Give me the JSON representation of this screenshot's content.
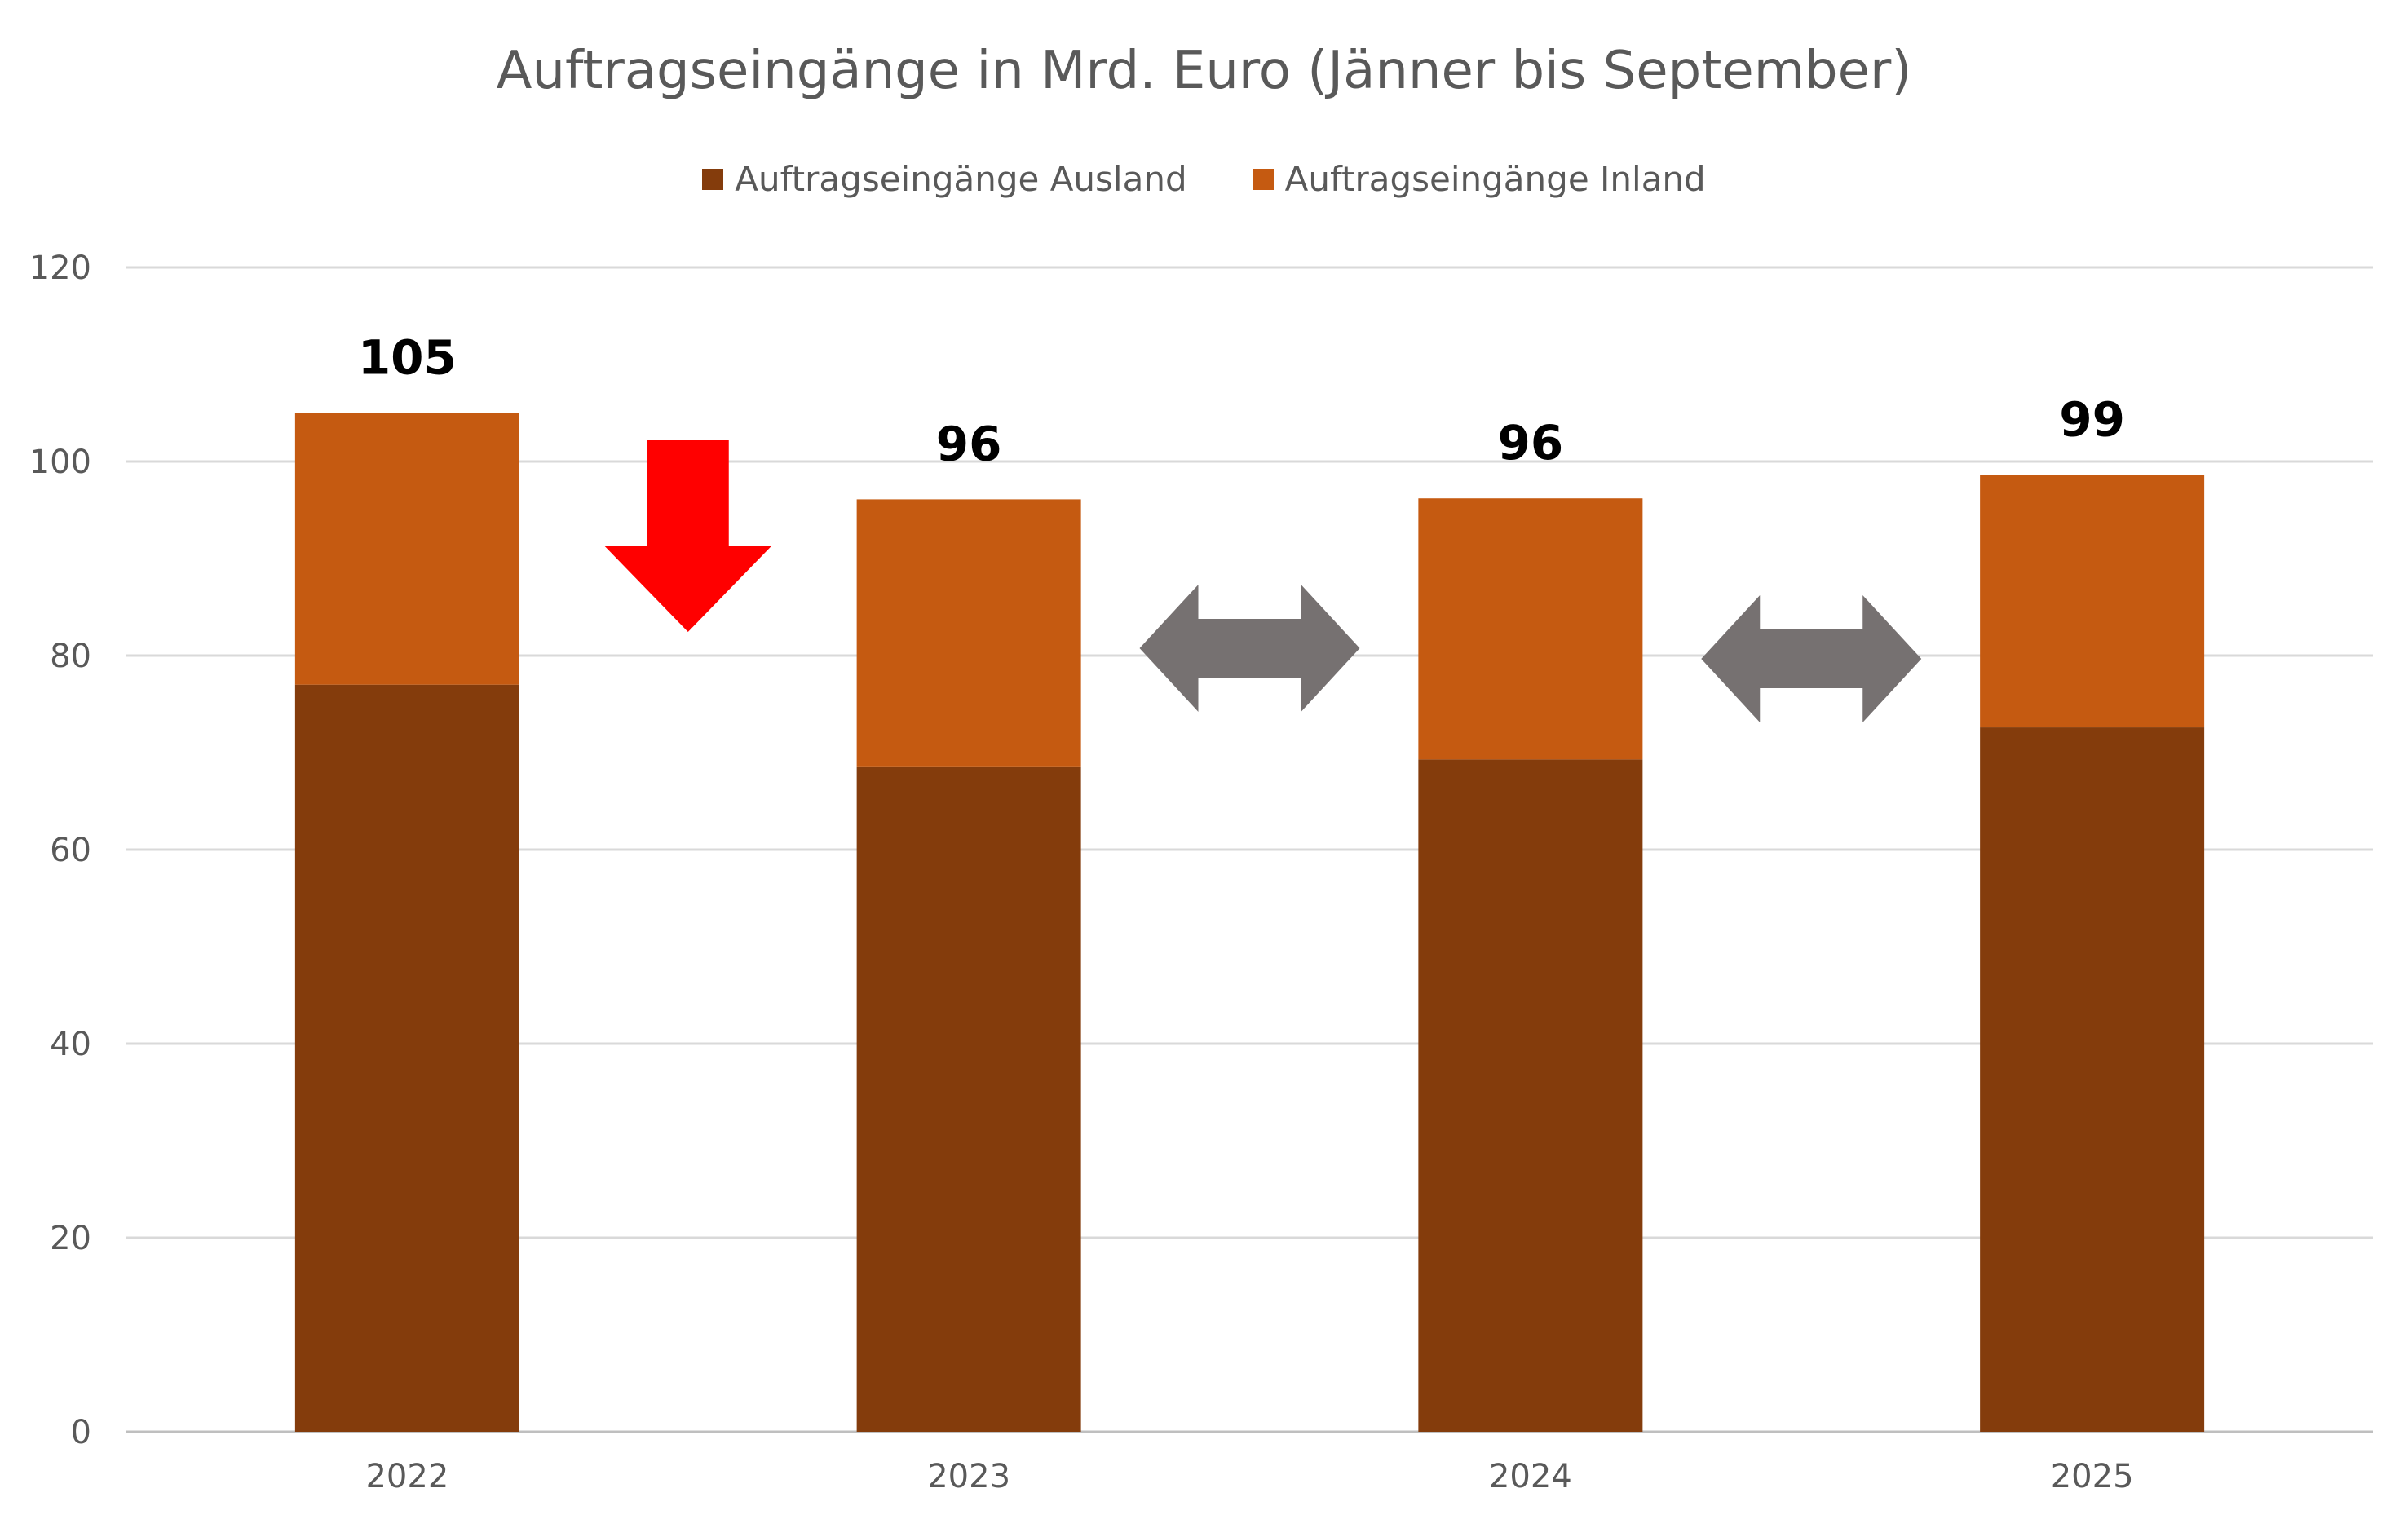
{
  "chart_data": {
    "type": "bar",
    "stacked": true,
    "title": "Auftragseingänge in Mrd. Euro (Jänner bis September)",
    "categories": [
      "2022",
      "2023",
      "2024",
      "2025"
    ],
    "series": [
      {
        "name": "Auftragseingänge Ausland",
        "color": "#843C0C",
        "values": [
          77,
          68.5,
          69.3,
          72.6
        ]
      },
      {
        "name": "Auftragseingänge Inland",
        "color": "#C55A11",
        "values": [
          28,
          27.6,
          26.9,
          26.0
        ]
      }
    ],
    "totals_labels": [
      "105",
      "96",
      "96",
      "99"
    ],
    "ylim": [
      0,
      120
    ],
    "yticks": [
      0,
      20,
      40,
      60,
      80,
      100,
      120
    ],
    "grid": true,
    "legend_position": "top",
    "annotations": [
      {
        "type": "down-arrow",
        "color": "#FF0000",
        "between": [
          "2022",
          "2023"
        ]
      },
      {
        "type": "double-arrow",
        "color": "#767171",
        "between": [
          "2023",
          "2024"
        ]
      },
      {
        "type": "double-arrow",
        "color": "#767171",
        "between": [
          "2024",
          "2025"
        ]
      }
    ]
  }
}
